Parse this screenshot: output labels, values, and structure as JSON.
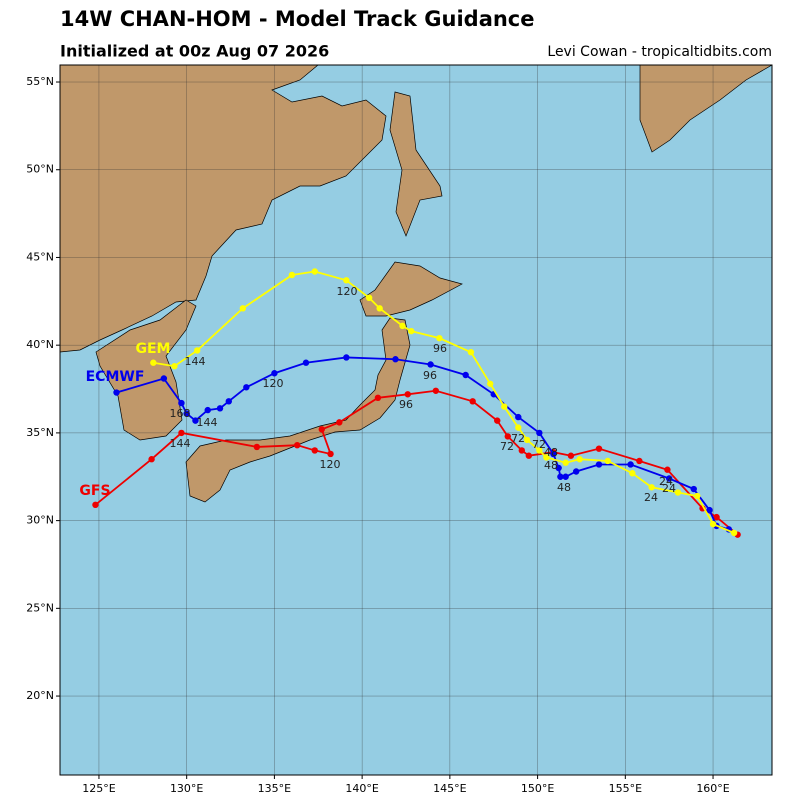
{
  "chart_data": {
    "type": "track",
    "title": "14W CHAN-HOM - Model Track Guidance",
    "subtitle": "Initialized at 00z Aug 07 2026",
    "credit": "Levi Cowan - tropicaltidbits.com",
    "xlim": [
      122.78,
      163.36
    ],
    "ylim": [
      15.5,
      55.97
    ],
    "xticks": [
      {
        "value": 125,
        "label": "125°E"
      },
      {
        "value": 130,
        "label": "130°E"
      },
      {
        "value": 135,
        "label": "135°E"
      },
      {
        "value": 140,
        "label": "140°E"
      },
      {
        "value": 145,
        "label": "145°E"
      },
      {
        "value": 150,
        "label": "150°E"
      },
      {
        "value": 155,
        "label": "155°E"
      },
      {
        "value": 160,
        "label": "160°E"
      }
    ],
    "yticks": [
      {
        "value": 20,
        "label": "20°N"
      },
      {
        "value": 25,
        "label": "25°N"
      },
      {
        "value": 30,
        "label": "30°N"
      },
      {
        "value": 35,
        "label": "35°N"
      },
      {
        "value": 40,
        "label": "40°N"
      },
      {
        "value": 45,
        "label": "45°N"
      },
      {
        "value": 50,
        "label": "50°N"
      },
      {
        "value": 55,
        "label": "55°N"
      }
    ],
    "grid": true,
    "series": [
      {
        "name": "GFS",
        "color": "#ee0000",
        "x": [
          161.4,
          160.2,
          159.4,
          157.4,
          155.8,
          153.5,
          151.9,
          150.9,
          149.5,
          149.1,
          148.3,
          147.7,
          146.3,
          144.2,
          142.6,
          140.9,
          138.7,
          137.7,
          138.2,
          137.3,
          136.3,
          134.0,
          129.7,
          128.0,
          124.8
        ],
        "values": [
          29.2,
          30.2,
          30.7,
          32.9,
          33.4,
          34.1,
          33.7,
          33.9,
          33.7,
          34.0,
          34.8,
          35.7,
          36.8,
          37.4,
          37.2,
          37.0,
          35.6,
          35.2,
          33.8,
          34.0,
          34.3,
          34.2,
          35.0,
          33.5,
          30.9
        ]
      },
      {
        "name": "ECMWF",
        "color": "#0000ee",
        "x": [
          160.9,
          160.2,
          159.8,
          158.9,
          157.5,
          155.3,
          153.5,
          152.2,
          151.6,
          151.3,
          151.2,
          150.9,
          150.1,
          148.9,
          147.5,
          145.9,
          143.9,
          141.9,
          139.1,
          136.8,
          135.0,
          133.4,
          132.4,
          131.9,
          131.2,
          130.5,
          130.0,
          129.7,
          128.7,
          126.0
        ],
        "values": [
          29.5,
          29.7,
          30.6,
          31.8,
          32.4,
          33.2,
          33.2,
          32.8,
          32.5,
          32.5,
          33.0,
          33.8,
          35.0,
          35.9,
          37.2,
          38.3,
          38.9,
          39.2,
          39.3,
          39.0,
          38.4,
          37.6,
          36.8,
          36.4,
          36.3,
          35.7,
          36.1,
          36.7,
          38.1,
          37.3
        ]
      },
      {
        "name": "GEM",
        "color": "#ffff00",
        "x": [
          161.2,
          160.0,
          159.1,
          158.0,
          156.5,
          155.4,
          154.0,
          152.4,
          151.6,
          150.5,
          150.1,
          149.4,
          148.9,
          148.1,
          147.3,
          146.2,
          144.4,
          142.8,
          142.3,
          141.0,
          140.4,
          139.1,
          137.3,
          136.0,
          133.2,
          130.6,
          129.3,
          128.1
        ],
        "values": [
          29.3,
          29.8,
          31.4,
          31.6,
          31.9,
          32.7,
          33.4,
          33.5,
          33.3,
          33.6,
          34.0,
          34.6,
          35.3,
          36.5,
          37.8,
          39.6,
          40.4,
          40.8,
          41.1,
          42.1,
          42.7,
          43.7,
          44.2,
          44.0,
          42.1,
          39.7,
          38.8,
          39.0
        ]
      }
    ],
    "annotations": [
      "24",
      "24",
      "24",
      "48",
      "48",
      "48",
      "72",
      "72",
      "72",
      "96",
      "96",
      "96",
      "120",
      "120",
      "120",
      "144",
      "144",
      "144",
      "168"
    ]
  }
}
